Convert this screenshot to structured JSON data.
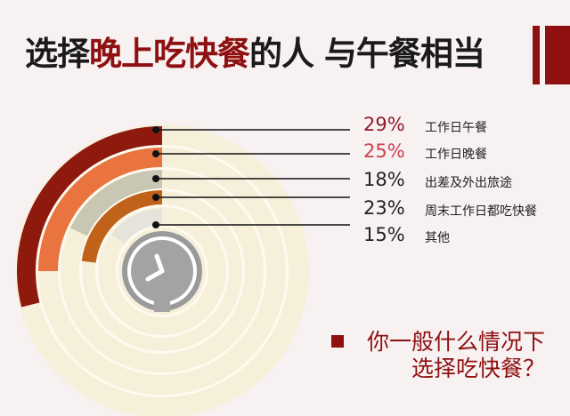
{
  "title": {
    "part1": "选择",
    "highlight": "晚上吃快餐",
    "part2": "的人 与午餐相当"
  },
  "question": {
    "line1": "你一般什么情况下",
    "line2": "选择吃快餐？"
  },
  "chart_data": {
    "type": "radial-bar",
    "categories": [
      "工作日午餐",
      "工作日晚餐",
      "出差及外出旅途",
      "周末工作日都吃快餐",
      "其他"
    ],
    "values": [
      29,
      25,
      18,
      23,
      15
    ],
    "value_labels": [
      "29%",
      "25%",
      "18%",
      "23%",
      "15%"
    ],
    "colors": [
      "#8e1a0e",
      "#e9743f",
      "#c8c7b4",
      "#c0621a",
      "#e6e2dc"
    ],
    "label_colors": [
      "#8e1a2a",
      "#c9404f",
      "#222222",
      "#222222",
      "#222222"
    ],
    "track_color": "#f6efd9",
    "center_icon": "clock-icon"
  }
}
